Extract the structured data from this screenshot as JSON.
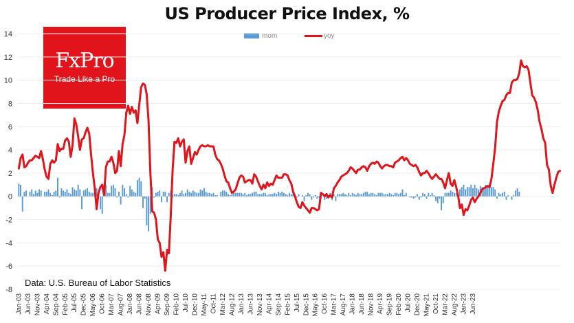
{
  "title": "US Producer Price Index, %",
  "logo": {
    "name": "FxPro",
    "tagline": "Trade Like a Pro",
    "color": "#e2141b"
  },
  "source": "Data: U.S. Bureau of Labor Statistics",
  "chart_data": {
    "type": "bar+line",
    "title": "US Producer Price Index, %",
    "xlabel": "",
    "ylabel": "",
    "ylim": [
      -8,
      14
    ],
    "yticks": [
      -8,
      -6,
      -4,
      -2,
      0,
      2,
      4,
      6,
      8,
      10,
      12,
      14
    ],
    "grid": "horizontal",
    "legend_position": "top-center",
    "x_start": "Jan-03",
    "x_end": "Dec-23",
    "x_tick_labels": [
      "Jan-03",
      "Jun-03",
      "Nov-03",
      "Apr-04",
      "Sep-04",
      "Feb-05",
      "Jul-05",
      "Dec-05",
      "May-06",
      "Oct-06",
      "Mar-07",
      "Aug-07",
      "Jan-08",
      "Jun-08",
      "Nov-08",
      "Apr-09",
      "Sep-09",
      "Feb-10",
      "Jul-10",
      "Dec-10",
      "May-11",
      "Oct-11",
      "Mar-12",
      "Aug-12",
      "Jan-13",
      "Jun-13",
      "Nov-13",
      "Apr-14",
      "Sep-14",
      "Feb-15",
      "Jul-15",
      "Dec-15",
      "May-16",
      "Oct-16",
      "Mar-17",
      "Aug-17",
      "Jan-18",
      "Jun-18",
      "Nov-18",
      "Apr-19",
      "Sep-19",
      "Feb-20",
      "Jul-20",
      "Dec-20",
      "May-21",
      "Oct-21",
      "Mar-22",
      "Aug-22",
      "Jan-23",
      "Jun-23"
    ],
    "series": [
      {
        "name": "mom",
        "type": "bar",
        "color": "#5b9bd5",
        "note": "month-over-month % change, one value per month from Jan-03",
        "values": [
          1.1,
          1.0,
          -1.3,
          0.4,
          0.5,
          0.0,
          0.4,
          0.6,
          0.2,
          0.5,
          0.3,
          0.6,
          0.5,
          0.0,
          0.4,
          0.4,
          0.6,
          0.3,
          0.1,
          0.4,
          0.5,
          1.6,
          -0.1,
          0.7,
          0.5,
          0.4,
          0.6,
          0.3,
          0.2,
          0.8,
          0.6,
          0.5,
          1.0,
          0.6,
          -1.1,
          0.5,
          0.6,
          0.7,
          0.4,
          0.3,
          0.3,
          0.4,
          0.7,
          0.1,
          -1.1,
          -1.5,
          0.2,
          1.0,
          0.3,
          0.3,
          0.9,
          1.0,
          0.7,
          -0.1,
          0.4,
          -0.7,
          1.0,
          0.7,
          0.2,
          -0.1,
          0.9,
          0.6,
          0.4,
          0.3,
          1.4,
          1.6,
          1.3,
          -1.0,
          -0.2,
          -2.5,
          -3.0,
          -1.5,
          0.8,
          -0.1,
          0.3,
          0.4,
          0.5,
          -0.5,
          0.4,
          0.4,
          -0.5,
          0.3,
          0.5,
          0.1,
          0.2,
          0.2,
          0.1,
          0.3,
          0.5,
          0.2,
          0.3,
          0.6,
          0.4,
          0.3,
          0.5,
          0.4,
          0.3,
          0.3,
          0.6,
          0.5,
          0.7,
          0.4,
          0.3,
          0.3,
          0.2,
          0.3,
          0.1,
          0.1,
          0.0,
          0.4,
          0.5,
          0.5,
          0.4,
          0.2,
          0.1,
          0.2,
          0.3,
          0.3,
          0.3,
          0.3,
          0.3,
          0.2,
          0.3,
          0.1,
          0.2,
          0.2,
          0.3,
          0.4,
          0.4,
          0.2,
          0.2,
          0.2,
          0.3,
          0.3,
          0.1,
          0.2,
          0.2,
          0.2,
          0.3,
          0.2,
          0.4,
          0.3,
          0.4,
          0.3,
          0.2,
          0.1,
          0.3,
          0.2,
          0.3,
          0.2,
          -0.1,
          0.2,
          0.0,
          0.1,
          -0.4,
          0.1,
          0.3,
          0.2,
          -0.3,
          -0.1,
          0.1,
          -0.2,
          -0.1,
          -0.2,
          0.0,
          -0.3,
          -0.2,
          0.1,
          0.3,
          -0.3,
          0.2,
          -0.4,
          0.2,
          0.2,
          0.2,
          0.3,
          0.2,
          0.1,
          0.3,
          0.1,
          0.3,
          0.2,
          0.1,
          0.3,
          0.2,
          0.2,
          0.3,
          0.4,
          0.4,
          0.2,
          0.3,
          0.3,
          0.2,
          0.1,
          0.3,
          0.3,
          0.3,
          0.2,
          0.2,
          0.2,
          0.3,
          0.2,
          0.1,
          0.3,
          0.3,
          0.2,
          0.3,
          0.6,
          0.1,
          0.3,
          0.0,
          -0.1,
          -0.1,
          -0.2,
          -0.1,
          0.2,
          -0.3,
          -0.1,
          0.3,
          0.2,
          -0.2,
          0.3,
          0.1,
          0.3,
          0.1,
          -0.4,
          -0.6,
          -0.2,
          -1.2,
          -0.6,
          0.3,
          0.3,
          0.3,
          0.5,
          0.4,
          0.3,
          0.3,
          0.1,
          0.6,
          0.8,
          1.0,
          0.6,
          0.8,
          0.8,
          1.0,
          0.7,
          1.0,
          0.7,
          0.6,
          0.9,
          0.8,
          0.6,
          1.0,
          0.9,
          1.1,
          0.8,
          0.8,
          0.6,
          -0.2,
          0.3,
          0.2,
          0.3,
          0.4,
          -0.3,
          0.1,
          0.0,
          -0.3,
          0.1,
          0.5,
          0.7,
          0.4,
          0.0
        ]
      },
      {
        "name": "yoy",
        "type": "line",
        "color": "#e2141b",
        "note": "year-over-year % change, one value per month from Jan-03",
        "values": [
          2.4,
          3.3,
          3.6,
          2.5,
          2.6,
          2.9,
          3.1,
          3.1,
          3.3,
          3.5,
          3.4,
          3.3,
          3.9,
          3.2,
          2.3,
          1.7,
          1.5,
          2.8,
          3.1,
          2.9,
          3.1,
          4.5,
          3.9,
          4.1,
          4.1,
          4.8,
          5.0,
          4.7,
          3.4,
          4.4,
          6.7,
          6.2,
          5.2,
          4.0,
          4.9,
          5.0,
          5.5,
          5.9,
          5.4,
          3.6,
          2.0,
          0.7,
          -1.1,
          0.3,
          0.8,
          1.0,
          0.1,
          2.5,
          3.0,
          3.0,
          3.4,
          2.9,
          2.0,
          2.2,
          3.9,
          2.6,
          4.5,
          5.3,
          7.2,
          7.8,
          7.1,
          7.7,
          7.2,
          7.4,
          6.3,
          7.9,
          9.4,
          9.7,
          9.6,
          8.8,
          6.5,
          2.0,
          -1.3,
          -1.4,
          -2.0,
          -3.7,
          -4.0,
          -5.2,
          -4.8,
          -6.4,
          -4.6,
          -4.9,
          -1.6,
          2.3,
          4.7,
          4.6,
          5.0,
          4.3,
          4.7,
          4.9,
          2.9,
          3.9,
          4.3,
          2.8,
          3.3,
          3.8,
          3.6,
          4.0,
          4.3,
          4.4,
          4.3,
          4.3,
          4.4,
          4.3,
          4.3,
          4.3,
          3.6,
          3.2,
          3.1,
          2.8,
          2.4,
          1.8,
          1.3,
          1.2,
          0.7,
          0.3,
          0.4,
          0.6,
          1.1,
          1.6,
          1.8,
          1.7,
          1.2,
          1.3,
          1.4,
          1.4,
          1.1,
          1.9,
          1.7,
          1.3,
          0.9,
          0.6,
          1.0,
          0.7,
          1.2,
          0.9,
          1.1,
          1.0,
          1.4,
          1.8,
          1.6,
          1.6,
          1.6,
          1.9,
          1.9,
          1.8,
          1.4,
          1.1,
          0.4,
          0.0,
          -0.5,
          -0.9,
          -1.0,
          -0.5,
          -0.8,
          -1.0,
          -1.2,
          -1.4,
          -1.0,
          -1.0,
          -1.1,
          -1.2,
          -1.1,
          0.3,
          0.2,
          0.0,
          0.2,
          -0.1,
          0.1,
          -0.1,
          0.7,
          0.9,
          1.2,
          1.4,
          1.7,
          1.8,
          1.9,
          2.0,
          2.2,
          2.5,
          2.4,
          2.2,
          2.0,
          2.3,
          2.3,
          2.5,
          2.6,
          2.5,
          2.2,
          2.6,
          2.8,
          2.9,
          2.8,
          3.0,
          2.9,
          2.6,
          2.4,
          2.6,
          2.7,
          2.7,
          2.6,
          2.6,
          2.5,
          2.9,
          3.0,
          3.1,
          3.3,
          3.4,
          3.1,
          3.3,
          3.1,
          2.8,
          2.7,
          2.6,
          2.7,
          2.5,
          2.1,
          1.8,
          2.0,
          2.0,
          2.2,
          2.0,
          1.7,
          1.5,
          1.7,
          1.9,
          1.7,
          1.5,
          1.5,
          1.2,
          0.7,
          1.4,
          2.0,
          1.1,
          0.9,
          1.4,
          0.8,
          0.1,
          -1.0,
          -0.7,
          -1.6,
          -1.1,
          -1.2,
          -0.8,
          -0.3,
          -0.1,
          -0.5,
          -0.2,
          0.0,
          0.3,
          0.6,
          0.7,
          0.8,
          0.9,
          0.8,
          1.5,
          2.8,
          4.2,
          6.4,
          7.3,
          7.8,
          8.2,
          8.3,
          8.7,
          8.9,
          8.9,
          9.8,
          10.0,
          10.0,
          10.1,
          10.6,
          11.7,
          11.2,
          11.1,
          11.2,
          10.9,
          9.8,
          8.7,
          8.5,
          8.1,
          7.4,
          6.4,
          5.8,
          5.0,
          4.6,
          2.7,
          2.3,
          0.9,
          0.3,
          1.0,
          1.6,
          2.1,
          2.2
        ]
      }
    ]
  }
}
